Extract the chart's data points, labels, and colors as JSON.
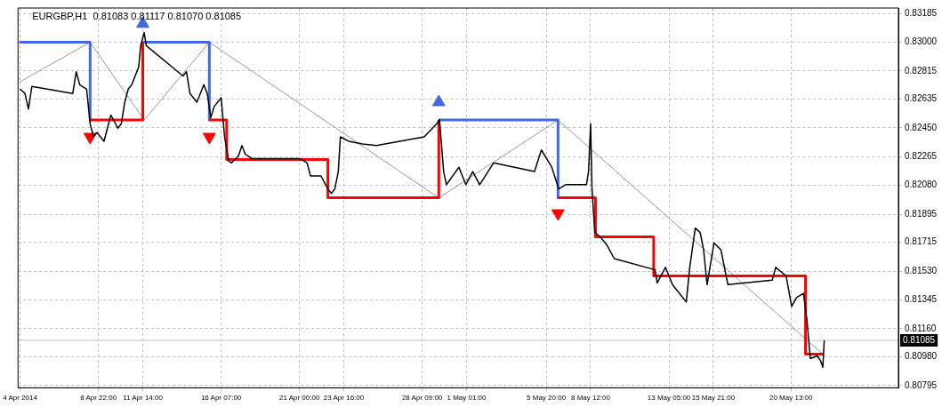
{
  "chart_data": {
    "type": "line",
    "title": "EURGBP,H1  0.81083 0.81117 0.81070 0.81085",
    "xlim": [
      "2014-04-04T02:00",
      "2014-05-27T00:00"
    ],
    "xticks": [
      {
        "value": "2014-04-04T05:00",
        "label": "4 Apr 2014"
      },
      {
        "value": "2014-04-08T22:00",
        "label": "8 Apr 22:00"
      },
      {
        "value": "2014-04-11T14:00",
        "label": "11 Apr 14:00"
      },
      {
        "value": "2014-04-16T07:00",
        "label": "16 Apr 07:00"
      },
      {
        "value": "2014-04-21T00:00",
        "label": "21 Apr 00:00"
      },
      {
        "value": "2014-04-23T16:00",
        "label": "23 Apr 16:00"
      },
      {
        "value": "2014-04-28T09:00",
        "label": "28 Apr 09:00"
      },
      {
        "value": "2014-05-01T01:00",
        "label": "1 May 01:00"
      },
      {
        "value": "2014-05-05T20:00",
        "label": "5 May 20:00"
      },
      {
        "value": "2014-05-08T12:00",
        "label": "8 May 12:00"
      },
      {
        "value": "2014-05-13T05:00",
        "label": "13 May 05:00"
      },
      {
        "value": "2014-05-15T21:00",
        "label": "15 May 21:00"
      },
      {
        "value": "2014-05-20T13:00",
        "label": "20 May 13:00"
      }
    ],
    "ylim": [
      0.8078,
      0.8322
    ],
    "yticks": [
      {
        "value": 0.83185,
        "label": "0.83185"
      },
      {
        "value": 0.83,
        "label": "0.83000"
      },
      {
        "value": 0.82815,
        "label": "0.82815"
      },
      {
        "value": 0.82635,
        "label": "0.82635"
      },
      {
        "value": 0.8245,
        "label": "0.82450"
      },
      {
        "value": 0.82265,
        "label": "0.82265"
      },
      {
        "value": 0.8208,
        "label": "0.82080"
      },
      {
        "value": 0.81895,
        "label": "0.81895"
      },
      {
        "value": 0.81715,
        "label": "0.81715"
      },
      {
        "value": 0.8153,
        "label": "0.81530"
      },
      {
        "value": 0.81345,
        "label": "0.81345"
      },
      {
        "value": 0.8116,
        "label": "0.81160"
      },
      {
        "value": 0.8098,
        "label": "0.80980"
      },
      {
        "value": 0.80795,
        "label": "0.80795"
      }
    ],
    "grid": true,
    "ref_lines": [
      {
        "axis": "y",
        "value": 0.81085,
        "label": "0.81085",
        "color": "#c0c0c0"
      }
    ],
    "series": [
      {
        "color": "#000000",
        "x": [
          "2014-04-04T05:00",
          "2014-04-04T12:00",
          "2014-04-04T17:00",
          "2014-04-04T22:00",
          "2014-04-07T09:00",
          "2014-04-07T14:00",
          "2014-04-07T19:00",
          "2014-04-08T05:00",
          "2014-04-08T10:00",
          "2014-04-08T15:00",
          "2014-04-08T20:00",
          "2014-04-09T06:00",
          "2014-04-09T11:00",
          "2014-04-09T16:00",
          "2014-04-10T02:00",
          "2014-04-10T07:00",
          "2014-04-10T12:00",
          "2014-04-10T17:00",
          "2014-04-10T22:00",
          "2014-04-11T03:00",
          "2014-04-11T08:00",
          "2014-04-11T11:00",
          "2014-04-11T16:00",
          "2014-04-11T19:00",
          "2014-04-14T00:00",
          "2014-04-14T05:00",
          "2014-04-14T10:00",
          "2014-04-14T15:00",
          "2014-04-14T20:00",
          "2014-04-15T01:00",
          "2014-04-15T06:00",
          "2014-04-15T11:00",
          "2014-04-15T16:00",
          "2014-04-15T21:00",
          "2014-04-16T07:00",
          "2014-04-16T12:00",
          "2014-04-16T18:00",
          "2014-04-16T22:00",
          "2014-04-17T08:00",
          "2014-04-17T13:00",
          "2014-04-17T18:00",
          "2014-04-18T04:00",
          "2014-04-21T01:00",
          "2014-04-21T11:00",
          "2014-04-21T16:00",
          "2014-04-22T07:00",
          "2014-04-22T17:00",
          "2014-04-22T22:00",
          "2014-04-23T03:00",
          "2014-04-23T08:00",
          "2014-04-23T11:00",
          "2014-04-23T23:00",
          "2014-04-24T19:00",
          "2014-04-25T15:00",
          "2014-04-28T12:00",
          "2014-04-29T06:00",
          "2014-04-29T10:00",
          "2014-04-29T16:00",
          "2014-04-29T20:00",
          "2014-04-30T14:00",
          "2014-05-01T00:00",
          "2014-05-01T10:00",
          "2014-05-01T20:00",
          "2014-05-02T16:00",
          "2014-05-05T03:00",
          "2014-05-05T13:00",
          "2014-05-06T04:00",
          "2014-05-06T14:00",
          "2014-05-07T00:00",
          "2014-05-08T06:00",
          "2014-05-08T09:00",
          "2014-05-08T12:00",
          "2014-05-08T14:00",
          "2014-05-08T18:00",
          "2014-05-09T02:00",
          "2014-05-09T12:00",
          "2014-05-09T22:00",
          "2014-05-12T09:00",
          "2014-05-12T12:00",
          "2014-05-13T00:00",
          "2014-05-13T10:00",
          "2014-05-14T01:00",
          "2014-05-14T06:00",
          "2014-05-14T11:00",
          "2014-05-14T19:00",
          "2014-05-15T02:00",
          "2014-05-15T07:00",
          "2014-05-15T12:00",
          "2014-05-15T22:00",
          "2014-05-16T08:00",
          "2014-05-16T18:00",
          "2014-05-19T10:00",
          "2014-05-19T15:00",
          "2014-05-20T06:00",
          "2014-05-20T14:00",
          "2014-05-20T21:00",
          "2014-05-21T07:00",
          "2014-05-21T12:00",
          "2014-05-21T17:00",
          "2014-05-22T03:00",
          "2014-05-22T08:00",
          "2014-05-22T11:00",
          "2014-05-22T13:00"
        ],
        "values": [
          0.82699,
          0.82671,
          0.82571,
          0.82716,
          0.82671,
          0.82811,
          0.82727,
          0.82699,
          0.82476,
          0.82392,
          0.8242,
          0.82364,
          0.82448,
          0.82532,
          0.82448,
          0.82476,
          0.82615,
          0.82699,
          0.82727,
          0.82783,
          0.82839,
          0.82978,
          0.83062,
          0.82978,
          0.82783,
          0.82811,
          0.82671,
          0.82643,
          0.82615,
          0.82671,
          0.82727,
          0.82671,
          0.82515,
          0.82587,
          0.82643,
          0.82392,
          0.82236,
          0.82225,
          0.82269,
          0.82336,
          0.8228,
          0.82252,
          0.82252,
          0.82225,
          0.82141,
          0.82141,
          0.82057,
          0.82029,
          0.82057,
          0.82169,
          0.82392,
          0.82364,
          0.82347,
          0.82336,
          0.82392,
          0.82476,
          0.82504,
          0.82169,
          0.82085,
          0.82197,
          0.82085,
          0.82169,
          0.82085,
          0.82225,
          0.82169,
          0.82308,
          0.82197,
          0.82057,
          0.82085,
          0.82085,
          0.82169,
          0.82476,
          0.82057,
          0.81778,
          0.8175,
          0.81694,
          0.8161,
          0.81538,
          0.81454,
          0.81554,
          0.81443,
          0.81359,
          0.81331,
          0.81554,
          0.81806,
          0.81778,
          0.81666,
          0.81443,
          0.81711,
          0.81666,
          0.81443,
          0.81471,
          0.81554,
          0.81499,
          0.81303,
          0.81359,
          0.81387,
          0.81219,
          0.80968,
          0.80985,
          0.80951,
          0.80912,
          0.81085
        ]
      },
      {
        "color": "#808080",
        "x": [
          "2014-04-04T04:00",
          "2014-04-08T10:00",
          "2014-04-11T16:00",
          "2014-04-15T14:00",
          "2014-04-29T09:00",
          "2014-05-06T13:00",
          "2014-05-22T11:00"
        ],
        "values": [
          0.82744,
          0.83,
          0.825,
          0.83,
          0.82,
          0.825,
          0.80996
        ]
      },
      {
        "color": "#4169e1",
        "x": [
          "2014-04-04T04:00",
          "2014-04-08T10:00",
          "2014-04-08T10:00"
        ],
        "values": [
          0.83,
          0.83,
          0.825
        ]
      },
      {
        "color": "#4169e1",
        "x": [
          "2014-04-11T14:00",
          "2014-04-15T14:00",
          "2014-04-15T14:00"
        ],
        "values": [
          0.83,
          0.83,
          0.825
        ]
      },
      {
        "color": "#4169e1",
        "x": [
          "2014-04-29T09:00",
          "2014-05-06T13:00",
          "2014-05-06T13:00"
        ],
        "values": [
          0.825,
          0.825,
          0.82
        ]
      },
      {
        "color": "#ff0000",
        "x": [
          "2014-04-08T10:00",
          "2014-04-11T14:00",
          "2014-04-11T14:00"
        ],
        "values": [
          0.825,
          0.825,
          0.83
        ]
      },
      {
        "color": "#ff0000",
        "x": [
          "2014-04-15T14:00",
          "2014-04-16T15:00",
          "2014-04-16T15:00",
          "2014-04-22T17:00",
          "2014-04-22T17:00",
          "2014-04-29T09:00",
          "2014-04-29T09:00"
        ],
        "values": [
          0.825,
          0.825,
          0.82247,
          0.82247,
          0.82001,
          0.82001,
          0.825
        ]
      },
      {
        "color": "#ff0000",
        "x": [
          "2014-05-06T13:00",
          "2014-05-08T19:00",
          "2014-05-08T19:00",
          "2014-05-12T07:00",
          "2014-05-12T07:00",
          "2014-05-21T10:00",
          "2014-05-21T10:00",
          "2014-05-22T11:00"
        ],
        "values": [
          0.82001,
          0.82001,
          0.8175,
          0.8175,
          0.81499,
          0.81499,
          0.80996,
          0.80996
        ]
      },
      {
        "type": "scatter",
        "color": "#4169e1",
        "marker": "triangle",
        "x": [
          "2014-04-11T14:00",
          "2014-04-29T09:00"
        ],
        "values": [
          0.83118,
          0.82615
        ]
      },
      {
        "type": "scatter",
        "color": "#ff0000",
        "marker": "triangle",
        "x": [
          "2014-04-08T10:00",
          "2014-04-15T14:00",
          "2014-05-06T13:00"
        ],
        "values": [
          0.82392,
          0.82392,
          0.81901
        ]
      }
    ]
  }
}
